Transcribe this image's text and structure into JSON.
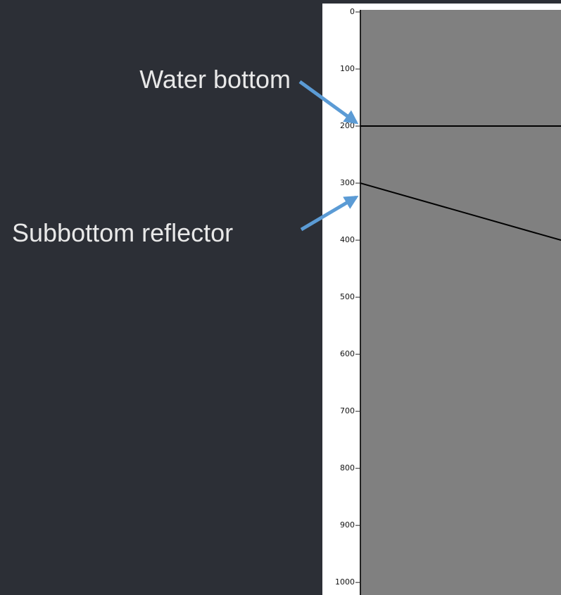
{
  "chart_data": {
    "type": "line",
    "series": [
      {
        "name": "Water bottom",
        "color": "#000000",
        "values": [
          200,
          200
        ]
      },
      {
        "name": "Subbottom reflector",
        "color": "#000000",
        "values": [
          300,
          400
        ]
      }
    ],
    "ylim": [
      0,
      1022
    ],
    "yticks": [
      0,
      100,
      200,
      300,
      400,
      500,
      600,
      700,
      800,
      900,
      1000
    ],
    "background": "#808080"
  }
}
